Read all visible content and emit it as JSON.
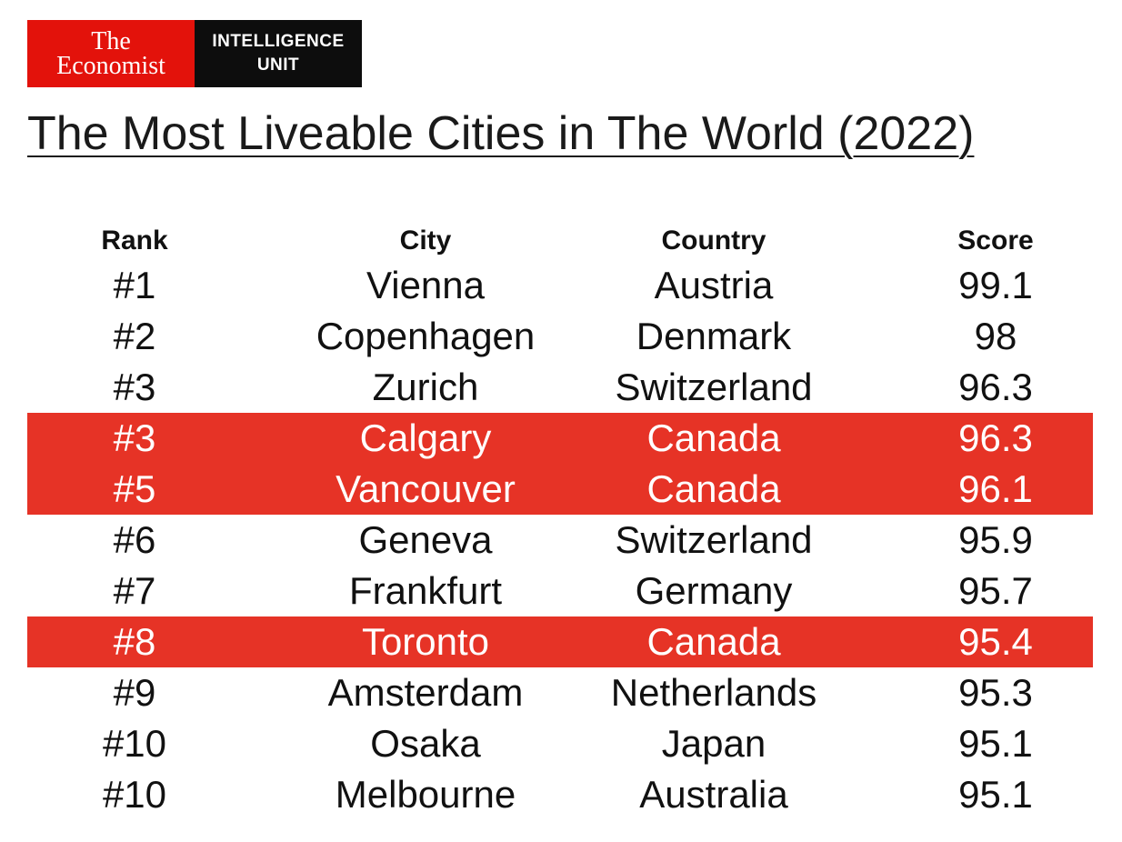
{
  "logo": {
    "brand_line1": "The",
    "brand_line2": "Economist",
    "unit_line1": "INTELLIGENCE",
    "unit_line2": "UNIT"
  },
  "title": "The Most Liveable Cities in The World (2022)",
  "table": {
    "columns": [
      "Rank",
      "City",
      "Country",
      "Score"
    ],
    "rows": [
      {
        "rank": "#1",
        "city": "Vienna",
        "country": "Austria",
        "score": "99.1",
        "highlight": false
      },
      {
        "rank": "#2",
        "city": "Copenhagen",
        "country": "Denmark",
        "score": "98",
        "highlight": false
      },
      {
        "rank": "#3",
        "city": "Zurich",
        "country": "Switzerland",
        "score": "96.3",
        "highlight": false
      },
      {
        "rank": "#3",
        "city": "Calgary",
        "country": "Canada",
        "score": "96.3",
        "highlight": true
      },
      {
        "rank": "#5",
        "city": "Vancouver",
        "country": "Canada",
        "score": "96.1",
        "highlight": true
      },
      {
        "rank": "#6",
        "city": "Geneva",
        "country": "Switzerland",
        "score": "95.9",
        "highlight": false
      },
      {
        "rank": "#7",
        "city": "Frankfurt",
        "country": "Germany",
        "score": "95.7",
        "highlight": false
      },
      {
        "rank": "#8",
        "city": "Toronto",
        "country": "Canada",
        "score": "95.4",
        "highlight": true
      },
      {
        "rank": "#9",
        "city": "Amsterdam",
        "country": "Netherlands",
        "score": "95.3",
        "highlight": false
      },
      {
        "rank": "#10",
        "city": "Osaka",
        "country": "Japan",
        "score": "95.1",
        "highlight": false
      },
      {
        "rank": "#10",
        "city": "Melbourne",
        "country": "Australia",
        "score": "95.1",
        "highlight": false
      }
    ]
  },
  "colors": {
    "economist_red": "#e3120b",
    "highlight_red": "#e63326",
    "logo_black": "#0d0d0d"
  }
}
